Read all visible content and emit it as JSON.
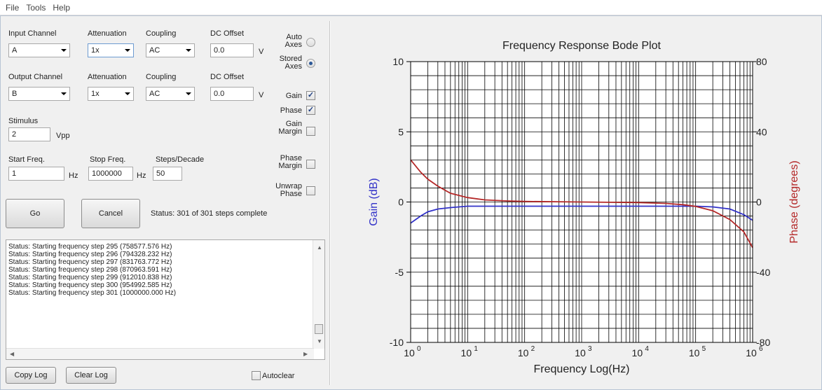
{
  "menu": [
    "File",
    "Tools",
    "Help"
  ],
  "input": {
    "channel_label": "Input Channel",
    "channel_value": "A",
    "attenuation_label": "Attenuation",
    "attenuation_value": "1x",
    "coupling_label": "Coupling",
    "coupling_value": "AC",
    "dc_offset_label": "DC Offset",
    "dc_offset_value": "0.0",
    "dc_offset_unit": "V"
  },
  "output": {
    "channel_label": "Output Channel",
    "channel_value": "B",
    "attenuation_label": "Attenuation",
    "attenuation_value": "1x",
    "coupling_label": "Coupling",
    "coupling_value": "AC",
    "dc_offset_label": "DC Offset",
    "dc_offset_value": "0.0",
    "dc_offset_unit": "V"
  },
  "stimulus": {
    "label": "Stimulus",
    "value": "2",
    "unit": "Vpp"
  },
  "sweep": {
    "start_label": "Start Freq.",
    "start_value": "1",
    "start_unit": "Hz",
    "stop_label": "Stop Freq.",
    "stop_value": "1000000",
    "stop_unit": "Hz",
    "steps_label": "Steps/Decade",
    "steps_value": "50"
  },
  "options": {
    "auto_axes": [
      "Auto",
      "Axes"
    ],
    "stored_axes": [
      "Stored",
      "Axes"
    ],
    "gain": "Gain",
    "phase": "Phase",
    "gain_margin": [
      "Gain",
      "Margin"
    ],
    "phase_margin": [
      "Phase",
      "Margin"
    ],
    "unwrap_phase": [
      "Unwrap",
      "Phase"
    ],
    "auto_axes_selected": false,
    "stored_axes_selected": true,
    "gain_checked": true,
    "phase_checked": true,
    "gain_margin_checked": false,
    "phase_margin_checked": false,
    "unwrap_phase_checked": false
  },
  "buttons": {
    "go": "Go",
    "cancel": "Cancel",
    "copy_log": "Copy Log",
    "clear_log": "Clear Log"
  },
  "status": "Status: 301 of 301 steps complete",
  "log": [
    "Status: Starting frequency step 295 (758577.576 Hz)",
    "Status: Starting frequency step 296 (794328.232 Hz)",
    "Status: Starting frequency step 297 (831763.772 Hz)",
    "Status: Starting frequency step 298 (870963.591 Hz)",
    "Status: Starting frequency step 299 (912010.838 Hz)",
    "Status: Starting frequency step 300 (954992.585 Hz)",
    "Status: Starting frequency step 301 (1000000.000 Hz)"
  ],
  "autoclear": {
    "label": "Autoclear",
    "checked": false
  },
  "chart_data": {
    "type": "line",
    "title": "Frequency Response Bode Plot",
    "xlabel": "Frequency Log(Hz)",
    "ylabel": "Gain (dB)",
    "y2label": "Phase (degrees)",
    "x_scale": "log",
    "xlim": [
      1,
      1000000
    ],
    "ylim": [
      -10,
      10
    ],
    "y2lim": [
      -80,
      80
    ],
    "x_ticks": [
      1,
      10,
      100,
      1000,
      10000,
      100000,
      1000000
    ],
    "x_tick_labels": [
      [
        "10",
        "0"
      ],
      [
        "10",
        "1"
      ],
      [
        "10",
        "2"
      ],
      [
        "10",
        "3"
      ],
      [
        "10",
        "4"
      ],
      [
        "10",
        "5"
      ],
      [
        "10",
        "6"
      ]
    ],
    "y_ticks": [
      10,
      5,
      0,
      -5,
      -10
    ],
    "y_tick_labels": [
      "10",
      "5",
      "0",
      "-5",
      "-10"
    ],
    "y2_ticks": [
      80,
      40,
      0,
      -40,
      -80
    ],
    "y2_tick_labels": [
      "80",
      "40",
      "0",
      "-40",
      "-80"
    ],
    "grid": true,
    "colors": {
      "gain": "#3232c8",
      "phase": "#b42828"
    },
    "series": [
      {
        "axis": "left",
        "x": [
          1,
          1.5,
          2,
          3,
          5,
          10,
          100,
          1000,
          10000,
          50000,
          100000,
          200000,
          400000,
          700000,
          1000000
        ],
        "values": [
          -1.5,
          -1.0,
          -0.7,
          -0.5,
          -0.4,
          -0.3,
          -0.3,
          -0.3,
          -0.3,
          -0.3,
          -0.3,
          -0.35,
          -0.5,
          -0.9,
          -1.3
        ]
      },
      {
        "axis": "right",
        "x": [
          1,
          1.5,
          2,
          3,
          5,
          10,
          20,
          50,
          100,
          1000,
          10000,
          30000,
          60000,
          100000,
          200000,
          400000,
          700000,
          1000000
        ],
        "values": [
          24,
          17,
          13,
          9,
          5,
          2.5,
          1.2,
          0.6,
          0.3,
          0,
          -0.3,
          -0.8,
          -1.5,
          -2.5,
          -5,
          -10,
          -17,
          -26
        ]
      }
    ]
  }
}
